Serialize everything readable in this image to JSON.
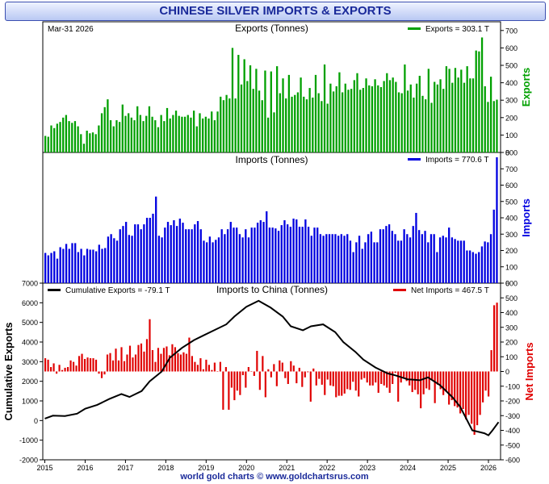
{
  "header": {
    "title": "CHINESE SILVER IMPORTS & EXPORTS",
    "date": "Mar-31  2026",
    "footer": "world gold charts © www.goldchartsrus.com"
  },
  "colors": {
    "exports": "#00a000",
    "imports": "#0000e0",
    "net": "#e00000",
    "cumulative": "#000000",
    "title_text": "#1a2a9a",
    "footer_text": "#1a2a9a"
  },
  "chart_data": [
    {
      "type": "bar",
      "title": "Exports (Tonnes)",
      "legend": "Exports = 303.1 T",
      "right_label": "Exports",
      "ylim": [
        0,
        750
      ],
      "yticks": [
        0,
        100,
        200,
        300,
        400,
        500,
        600,
        700
      ],
      "values": [
        95,
        90,
        155,
        140,
        165,
        175,
        200,
        215,
        180,
        170,
        180,
        150,
        105,
        50,
        125,
        110,
        115,
        105,
        155,
        225,
        260,
        305,
        185,
        150,
        185,
        175,
        275,
        210,
        225,
        200,
        185,
        265,
        215,
        180,
        210,
        265,
        205,
        185,
        145,
        215,
        180,
        255,
        195,
        215,
        240,
        210,
        205,
        205,
        215,
        200,
        240,
        150,
        225,
        195,
        205,
        195,
        235,
        185,
        235,
        320,
        300,
        330,
        310,
        600,
        310,
        560,
        390,
        535,
        410,
        500,
        365,
        480,
        355,
        300,
        470,
        200,
        465,
        230,
        495,
        340,
        425,
        310,
        445,
        320,
        330,
        345,
        430,
        320,
        305,
        370,
        315,
        445,
        340,
        295,
        505,
        280,
        395,
        350,
        380,
        460,
        345,
        395,
        360,
        365,
        415,
        455,
        360,
        370,
        425,
        385,
        380,
        420,
        385,
        375,
        410,
        455,
        415,
        430,
        405,
        345,
        340,
        505,
        355,
        390,
        315,
        395,
        440,
        325,
        305,
        480,
        285,
        405,
        390,
        420,
        365,
        495,
        480,
        400,
        485,
        430,
        475,
        400,
        495,
        425,
        425,
        585,
        580,
        660,
        380,
        290,
        435,
        295,
        303.1
      ]
    },
    {
      "type": "bar",
      "title": "Imports (Tonnes)",
      "legend": "Imports = 770.6 T",
      "right_label": "Imports",
      "ylim": [
        0,
        800
      ],
      "yticks": [
        0,
        100,
        200,
        300,
        400,
        500,
        600,
        700,
        800
      ],
      "values": [
        185,
        170,
        185,
        195,
        150,
        220,
        210,
        240,
        210,
        245,
        245,
        190,
        210,
        170,
        210,
        205,
        205,
        195,
        235,
        210,
        215,
        285,
        300,
        275,
        260,
        330,
        350,
        375,
        295,
        290,
        360,
        360,
        330,
        360,
        400,
        400,
        425,
        530,
        290,
        280,
        340,
        375,
        355,
        385,
        350,
        395,
        370,
        330,
        330,
        330,
        360,
        380,
        330,
        260,
        250,
        285,
        250,
        265,
        280,
        330,
        300,
        330,
        375,
        340,
        340,
        300,
        280,
        330,
        280,
        340,
        340,
        370,
        385,
        375,
        440,
        340,
        340,
        335,
        320,
        355,
        385,
        360,
        345,
        395,
        390,
        345,
        345,
        390,
        345,
        290,
        340,
        340,
        300,
        290,
        300,
        300,
        300,
        300,
        290,
        300,
        290,
        300,
        260,
        190,
        250,
        290,
        210,
        250,
        300,
        315,
        250,
        250,
        330,
        330,
        350,
        360,
        320,
        300,
        260,
        260,
        330,
        300,
        280,
        350,
        430,
        325,
        300,
        320,
        250,
        300,
        300,
        190,
        280,
        290,
        280,
        340,
        280,
        270,
        260,
        260,
        260,
        200,
        200,
        190,
        180,
        190,
        225,
        255,
        250,
        300,
        450,
        770.6
      ]
    },
    {
      "type": "bar",
      "title": "Imports to China (Tonnes)",
      "legend": "Net Imports = 467.5 T",
      "right_label": "Net Imports",
      "ylim": [
        -600,
        600
      ],
      "yticks": [
        -600,
        -500,
        -400,
        -300,
        -200,
        -100,
        0,
        100,
        200,
        300,
        400,
        500,
        600
      ],
      "values": [
        90,
        80,
        30,
        55,
        -15,
        45,
        10,
        25,
        30,
        75,
        65,
        40,
        105,
        120,
        85,
        95,
        90,
        90,
        80,
        -15,
        -45,
        -20,
        115,
        125,
        75,
        155,
        75,
        165,
        70,
        115,
        175,
        95,
        115,
        180,
        190,
        135,
        220,
        355,
        145,
        65,
        160,
        120,
        160,
        170,
        110,
        185,
        165,
        125,
        115,
        130,
        120,
        230,
        105,
        65,
        45,
        90,
        15,
        80,
        45,
        10,
        60,
        0,
        65,
        -260,
        30,
        -260,
        -110,
        -195,
        -130,
        -160,
        -25,
        -110,
        30,
        0,
        -30,
        140,
        -125,
        105,
        -175,
        15,
        -40,
        50,
        -100,
        75,
        60,
        -45,
        -85,
        70,
        40,
        -80,
        25,
        -105,
        -40,
        -5,
        -205,
        20,
        -95,
        -50,
        -90,
        -160,
        -55,
        -95,
        -100,
        -175,
        -165,
        -165,
        -150,
        -120,
        -125,
        -70,
        -130,
        -170,
        -55,
        -45,
        -75,
        -95,
        -95,
        -75,
        -145,
        -85,
        -95,
        -110,
        -145,
        -85,
        -10,
        -205,
        -75,
        -40,
        -65,
        -95,
        -140,
        -125,
        -155,
        -250,
        -155,
        -115,
        -125,
        -60,
        -215,
        -90,
        -120,
        -160,
        -135,
        -225,
        -195,
        -235,
        -245,
        -285,
        -255,
        -325,
        -295,
        -355,
        -430,
        -365,
        -295,
        -210,
        -130,
        -170,
        145,
        450,
        467.5
      ]
    },
    {
      "type": "line",
      "title": "",
      "legend": "Cumulative Exports  = -79.1 T",
      "left_label": "Cumulative Exports",
      "ylim": [
        -2000,
        7000
      ],
      "yticks": [
        -2000,
        -1000,
        0,
        1000,
        2000,
        3000,
        4000,
        5000,
        6000,
        7000
      ],
      "x": [
        2015.0,
        2015.2,
        2015.5,
        2015.8,
        2016.0,
        2016.3,
        2016.6,
        2016.9,
        2017.1,
        2017.4,
        2017.6,
        2017.9,
        2018.1,
        2018.4,
        2018.7,
        2018.9,
        2019.2,
        2019.5,
        2019.7,
        2020.0,
        2020.3,
        2020.6,
        2020.9,
        2021.1,
        2021.4,
        2021.6,
        2021.9,
        2022.2,
        2022.4,
        2022.7,
        2022.9,
        2023.2,
        2023.5,
        2023.7,
        2024.0,
        2024.3,
        2024.5,
        2024.8,
        2025.1,
        2025.3,
        2025.6,
        2025.8,
        2025.9,
        2026.0,
        2026.1,
        2026.25
      ],
      "values": [
        100,
        250,
        230,
        350,
        600,
        800,
        1100,
        1350,
        1200,
        1500,
        2000,
        2500,
        3200,
        3700,
        4100,
        4300,
        4600,
        4900,
        5300,
        5800,
        6100,
        5750,
        5300,
        4800,
        4600,
        4800,
        4900,
        4500,
        4000,
        3500,
        3100,
        2700,
        2400,
        2300,
        2100,
        2050,
        2200,
        1800,
        1200,
        700,
        -500,
        -600,
        -650,
        -750,
        -500,
        -79.1
      ]
    }
  ],
  "x_axis": {
    "xlim": [
      2014.95,
      2026.3
    ],
    "ticks": [
      "2015",
      "2016",
      "2017",
      "2018",
      "2019",
      "2020",
      "2021",
      "2022",
      "2023",
      "2024",
      "2025",
      "2026"
    ]
  }
}
